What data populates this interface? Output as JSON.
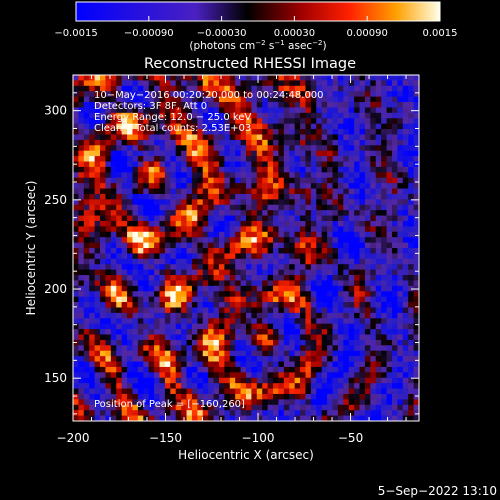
{
  "chart_data": {
    "type": "heatmap",
    "title": "Reconstructed RHESSI Image",
    "xlabel": "Heliocentric X (arcsec)",
    "ylabel": "Heliocentric Y (arcsec)",
    "xlim": [
      -200,
      -13
    ],
    "ylim": [
      126,
      320
    ],
    "x_ticks": [
      -200,
      -150,
      -100,
      -50
    ],
    "x_tick_labels": [
      "−200",
      "−150",
      "−100",
      "−50"
    ],
    "y_ticks": [
      150,
      200,
      250,
      300
    ],
    "y_tick_labels": [
      "150",
      "200",
      "250",
      "300"
    ],
    "colorbar": {
      "range": [
        -0.0015,
        0.0015
      ],
      "ticks": [
        -0.0015,
        -0.0009,
        -0.0003,
        0.0003,
        0.0009,
        0.0015
      ],
      "tick_labels": [
        "−0.0015",
        "−0.00090",
        "−0.00030",
        "0.00030",
        "0.00090",
        "0.0015"
      ],
      "unit_parts": [
        "(photons cm",
        "−2",
        " s",
        "−1",
        " asec",
        "−2",
        ")"
      ]
    },
    "annotations": {
      "time_range": "10−May−2016 00:20:20.000 to 00:24:48.000",
      "detectors": "Detectors: 3F 8F, Att 0",
      "energy_range": "Energy Range: 12.0 − 25.0 keV",
      "method_counts": "Clean    Total counts: 2.53E+03",
      "peak_position": "Position of Peak = [−160,260]"
    },
    "peak": [
      -160,
      260
    ],
    "grid": false,
    "legend": "none"
  },
  "footer_date": "5−Sep−2022 13:10"
}
